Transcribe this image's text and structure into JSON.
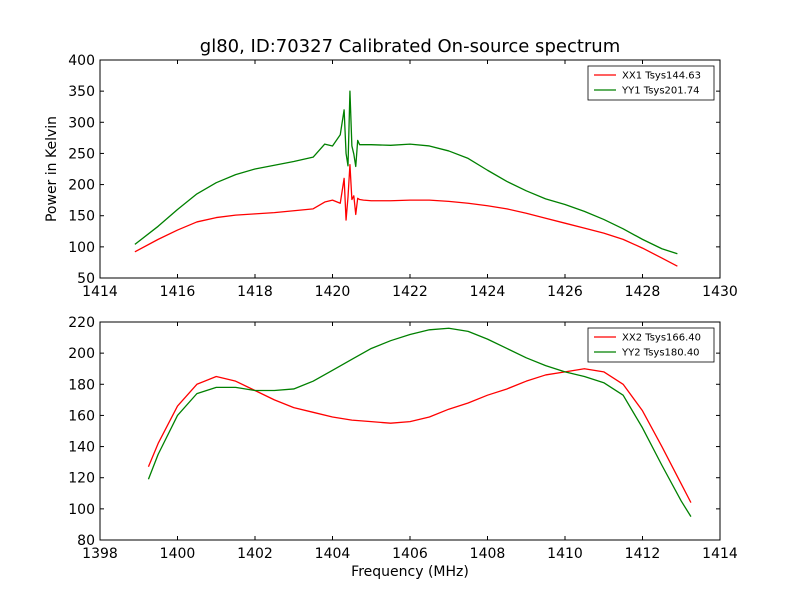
{
  "figure": {
    "title": "gl80, ID:70327 Calibrated On-source spectrum"
  },
  "chart_data": [
    {
      "type": "line",
      "title": "gl80, ID:70327 Calibrated On-source spectrum",
      "xlabel": "",
      "ylabel": "Power in Kelvin",
      "xlim": [
        1414,
        1430
      ],
      "ylim": [
        50,
        400
      ],
      "xticks": [
        1414,
        1416,
        1418,
        1420,
        1422,
        1424,
        1426,
        1428,
        1430
      ],
      "yticks": [
        50,
        100,
        150,
        200,
        250,
        300,
        350,
        400
      ],
      "legend_position": "top-right",
      "grid": false,
      "series": [
        {
          "name": "XX1 Tsys144.63",
          "color": "#ff0000",
          "x": [
            1414.9,
            1415.5,
            1416.0,
            1416.5,
            1417.0,
            1417.5,
            1418.0,
            1418.5,
            1419.0,
            1419.5,
            1419.8,
            1420.0,
            1420.2,
            1420.3,
            1420.35,
            1420.4,
            1420.45,
            1420.5,
            1420.55,
            1420.6,
            1420.65,
            1420.7,
            1420.8,
            1421.0,
            1421.5,
            1422.0,
            1422.5,
            1423.0,
            1423.5,
            1424.0,
            1424.5,
            1425.0,
            1425.5,
            1426.0,
            1426.5,
            1427.0,
            1427.5,
            1428.0,
            1428.5,
            1428.9
          ],
          "y": [
            92,
            112,
            127,
            140,
            147,
            151,
            153,
            155,
            158,
            161,
            172,
            175,
            170,
            210,
            143,
            180,
            232,
            176,
            182,
            152,
            178,
            176,
            175,
            174,
            174,
            175,
            175,
            173,
            170,
            166,
            161,
            154,
            146,
            138,
            130,
            122,
            112,
            98,
            82,
            69
          ]
        },
        {
          "name": "YY1 Tsys201.74",
          "color": "#008000",
          "x": [
            1414.9,
            1415.5,
            1416.0,
            1416.5,
            1417.0,
            1417.5,
            1418.0,
            1418.5,
            1419.0,
            1419.5,
            1419.8,
            1420.0,
            1420.2,
            1420.3,
            1420.35,
            1420.4,
            1420.45,
            1420.5,
            1420.55,
            1420.6,
            1420.65,
            1420.7,
            1420.8,
            1421.0,
            1421.5,
            1422.0,
            1422.5,
            1423.0,
            1423.5,
            1424.0,
            1424.5,
            1425.0,
            1425.5,
            1426.0,
            1426.5,
            1427.0,
            1427.5,
            1428.0,
            1428.5,
            1428.9
          ],
          "y": [
            104,
            133,
            160,
            185,
            203,
            216,
            225,
            231,
            237,
            244,
            265,
            262,
            280,
            320,
            250,
            230,
            350,
            262,
            249,
            229,
            271,
            264,
            264,
            264,
            263,
            265,
            262,
            254,
            242,
            223,
            205,
            190,
            177,
            168,
            157,
            144,
            129,
            112,
            97,
            89
          ]
        }
      ]
    },
    {
      "type": "line",
      "title": "",
      "xlabel": "Frequency (MHz)",
      "ylabel": "",
      "xlim": [
        1398,
        1414
      ],
      "ylim": [
        80,
        220
      ],
      "xticks": [
        1398,
        1400,
        1402,
        1404,
        1406,
        1408,
        1410,
        1412,
        1414
      ],
      "yticks": [
        80,
        100,
        120,
        140,
        160,
        180,
        200,
        220
      ],
      "legend_position": "top-right",
      "grid": false,
      "series": [
        {
          "name": "XX2 Tsys166.40",
          "color": "#ff0000",
          "x": [
            1399.25,
            1399.5,
            1400.0,
            1400.5,
            1401.0,
            1401.5,
            1402.0,
            1402.5,
            1403.0,
            1403.5,
            1404.0,
            1404.5,
            1405.0,
            1405.5,
            1406.0,
            1406.5,
            1407.0,
            1407.5,
            1408.0,
            1408.5,
            1409.0,
            1409.5,
            1410.0,
            1410.5,
            1411.0,
            1411.5,
            1412.0,
            1412.5,
            1413.0,
            1413.25
          ],
          "y": [
            127,
            142,
            166,
            180,
            185,
            182,
            176,
            170,
            165,
            162,
            159,
            157,
            156,
            155,
            156,
            159,
            164,
            168,
            173,
            177,
            182,
            186,
            188,
            190,
            188,
            180,
            163,
            140,
            116,
            104
          ]
        },
        {
          "name": "YY2 Tsys180.40",
          "color": "#008000",
          "x": [
            1399.25,
            1399.5,
            1400.0,
            1400.5,
            1401.0,
            1401.5,
            1402.0,
            1402.5,
            1403.0,
            1403.5,
            1404.0,
            1404.5,
            1405.0,
            1405.5,
            1406.0,
            1406.5,
            1407.0,
            1407.5,
            1408.0,
            1408.5,
            1409.0,
            1409.5,
            1410.0,
            1410.5,
            1411.0,
            1411.5,
            1412.0,
            1412.5,
            1413.0,
            1413.25
          ],
          "y": [
            119,
            135,
            160,
            174,
            178,
            178,
            176,
            176,
            177,
            182,
            189,
            196,
            203,
            208,
            212,
            215,
            216,
            214,
            209,
            203,
            197,
            192,
            188,
            185,
            181,
            173,
            152,
            128,
            105,
            95
          ]
        }
      ]
    }
  ]
}
